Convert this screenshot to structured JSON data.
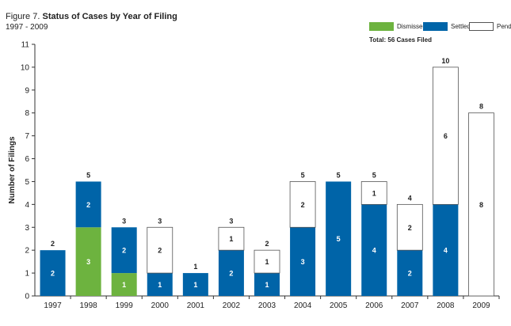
{
  "figure": {
    "prefix": "Figure 7.",
    "title": "Status of Cases by Year of Filing",
    "subtitle": "1997 - 2009"
  },
  "legend": {
    "items": [
      {
        "name": "Dismissed",
        "color": "#6db33f"
      },
      {
        "name": "Settled",
        "color": "#0064a8"
      },
      {
        "name": "Pending",
        "color": "#ffffff"
      }
    ],
    "total": "Total: 56 Cases Filed"
  },
  "chart_data": {
    "type": "bar",
    "stacked": true,
    "categories": [
      "1997",
      "1998",
      "1999",
      "2000",
      "2001",
      "2002",
      "2003",
      "2004",
      "2005",
      "2006",
      "2007",
      "2008",
      "2009"
    ],
    "series": [
      {
        "name": "Dismissed",
        "color": "#6db33f",
        "values": [
          0,
          3,
          1,
          0,
          0,
          0,
          0,
          0,
          0,
          0,
          0,
          0,
          0
        ]
      },
      {
        "name": "Settled",
        "color": "#0064a8",
        "values": [
          2,
          2,
          2,
          1,
          1,
          2,
          1,
          3,
          5,
          4,
          2,
          4,
          0
        ]
      },
      {
        "name": "Pending",
        "color": "#ffffff",
        "values": [
          0,
          0,
          0,
          2,
          0,
          1,
          1,
          2,
          0,
          1,
          2,
          6,
          8
        ]
      }
    ],
    "totals": [
      2,
      5,
      3,
      3,
      1,
      3,
      2,
      5,
      5,
      5,
      4,
      10,
      8
    ],
    "ylabel": "Number of Filings",
    "ylim": [
      0,
      11
    ],
    "yticks": [
      0,
      1,
      2,
      3,
      4,
      5,
      6,
      7,
      8,
      9,
      10,
      11
    ],
    "grid": false,
    "legend_position": "top-right"
  }
}
